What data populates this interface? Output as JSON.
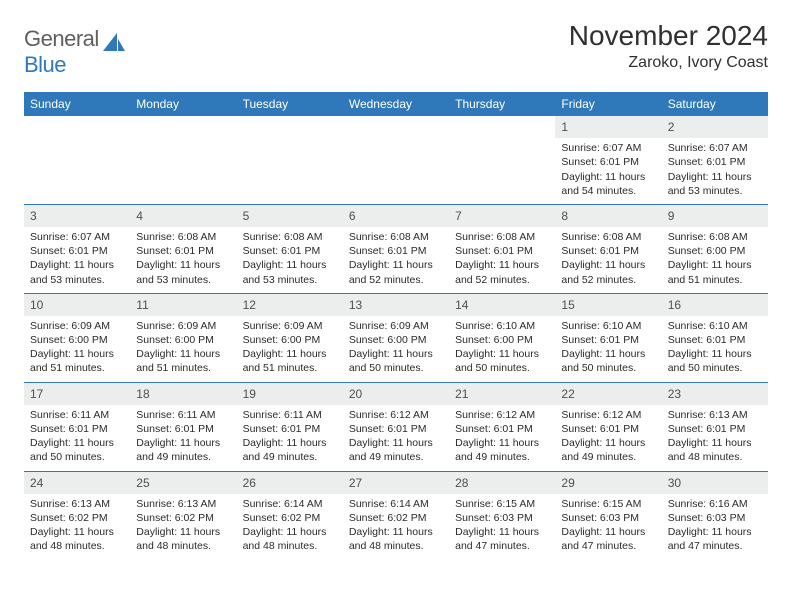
{
  "brand": {
    "word1": "General",
    "word2": "Blue",
    "icon_color": "#2f79bb",
    "text_gray": "#5f5f5f"
  },
  "title": {
    "month_year": "November 2024",
    "location": "Zaroko, Ivory Coast"
  },
  "style": {
    "header_bg": "#2f79bb",
    "header_fg": "#ffffff",
    "daybar_bg": "#eceded",
    "rule_color": "#2f79bb",
    "body_text": "#2b2b2b",
    "title_fontsize": 28,
    "location_fontsize": 16,
    "dayhead_fontsize": 12,
    "cell_fontsize": 10.5
  },
  "day_headers": [
    "Sunday",
    "Monday",
    "Tuesday",
    "Wednesday",
    "Thursday",
    "Friday",
    "Saturday"
  ],
  "weeks": [
    [
      {
        "empty": true
      },
      {
        "empty": true
      },
      {
        "empty": true
      },
      {
        "empty": true
      },
      {
        "empty": true
      },
      {
        "day": "1",
        "sunrise": "Sunrise: 6:07 AM",
        "sunset": "Sunset: 6:01 PM",
        "daylight": "Daylight: 11 hours and 54 minutes."
      },
      {
        "day": "2",
        "sunrise": "Sunrise: 6:07 AM",
        "sunset": "Sunset: 6:01 PM",
        "daylight": "Daylight: 11 hours and 53 minutes."
      }
    ],
    [
      {
        "day": "3",
        "sunrise": "Sunrise: 6:07 AM",
        "sunset": "Sunset: 6:01 PM",
        "daylight": "Daylight: 11 hours and 53 minutes."
      },
      {
        "day": "4",
        "sunrise": "Sunrise: 6:08 AM",
        "sunset": "Sunset: 6:01 PM",
        "daylight": "Daylight: 11 hours and 53 minutes."
      },
      {
        "day": "5",
        "sunrise": "Sunrise: 6:08 AM",
        "sunset": "Sunset: 6:01 PM",
        "daylight": "Daylight: 11 hours and 53 minutes."
      },
      {
        "day": "6",
        "sunrise": "Sunrise: 6:08 AM",
        "sunset": "Sunset: 6:01 PM",
        "daylight": "Daylight: 11 hours and 52 minutes."
      },
      {
        "day": "7",
        "sunrise": "Sunrise: 6:08 AM",
        "sunset": "Sunset: 6:01 PM",
        "daylight": "Daylight: 11 hours and 52 minutes."
      },
      {
        "day": "8",
        "sunrise": "Sunrise: 6:08 AM",
        "sunset": "Sunset: 6:01 PM",
        "daylight": "Daylight: 11 hours and 52 minutes."
      },
      {
        "day": "9",
        "sunrise": "Sunrise: 6:08 AM",
        "sunset": "Sunset: 6:00 PM",
        "daylight": "Daylight: 11 hours and 51 minutes."
      }
    ],
    [
      {
        "day": "10",
        "sunrise": "Sunrise: 6:09 AM",
        "sunset": "Sunset: 6:00 PM",
        "daylight": "Daylight: 11 hours and 51 minutes."
      },
      {
        "day": "11",
        "sunrise": "Sunrise: 6:09 AM",
        "sunset": "Sunset: 6:00 PM",
        "daylight": "Daylight: 11 hours and 51 minutes."
      },
      {
        "day": "12",
        "sunrise": "Sunrise: 6:09 AM",
        "sunset": "Sunset: 6:00 PM",
        "daylight": "Daylight: 11 hours and 51 minutes."
      },
      {
        "day": "13",
        "sunrise": "Sunrise: 6:09 AM",
        "sunset": "Sunset: 6:00 PM",
        "daylight": "Daylight: 11 hours and 50 minutes."
      },
      {
        "day": "14",
        "sunrise": "Sunrise: 6:10 AM",
        "sunset": "Sunset: 6:00 PM",
        "daylight": "Daylight: 11 hours and 50 minutes."
      },
      {
        "day": "15",
        "sunrise": "Sunrise: 6:10 AM",
        "sunset": "Sunset: 6:01 PM",
        "daylight": "Daylight: 11 hours and 50 minutes."
      },
      {
        "day": "16",
        "sunrise": "Sunrise: 6:10 AM",
        "sunset": "Sunset: 6:01 PM",
        "daylight": "Daylight: 11 hours and 50 minutes."
      }
    ],
    [
      {
        "day": "17",
        "sunrise": "Sunrise: 6:11 AM",
        "sunset": "Sunset: 6:01 PM",
        "daylight": "Daylight: 11 hours and 50 minutes."
      },
      {
        "day": "18",
        "sunrise": "Sunrise: 6:11 AM",
        "sunset": "Sunset: 6:01 PM",
        "daylight": "Daylight: 11 hours and 49 minutes."
      },
      {
        "day": "19",
        "sunrise": "Sunrise: 6:11 AM",
        "sunset": "Sunset: 6:01 PM",
        "daylight": "Daylight: 11 hours and 49 minutes."
      },
      {
        "day": "20",
        "sunrise": "Sunrise: 6:12 AM",
        "sunset": "Sunset: 6:01 PM",
        "daylight": "Daylight: 11 hours and 49 minutes."
      },
      {
        "day": "21",
        "sunrise": "Sunrise: 6:12 AM",
        "sunset": "Sunset: 6:01 PM",
        "daylight": "Daylight: 11 hours and 49 minutes."
      },
      {
        "day": "22",
        "sunrise": "Sunrise: 6:12 AM",
        "sunset": "Sunset: 6:01 PM",
        "daylight": "Daylight: 11 hours and 49 minutes."
      },
      {
        "day": "23",
        "sunrise": "Sunrise: 6:13 AM",
        "sunset": "Sunset: 6:01 PM",
        "daylight": "Daylight: 11 hours and 48 minutes."
      }
    ],
    [
      {
        "day": "24",
        "sunrise": "Sunrise: 6:13 AM",
        "sunset": "Sunset: 6:02 PM",
        "daylight": "Daylight: 11 hours and 48 minutes."
      },
      {
        "day": "25",
        "sunrise": "Sunrise: 6:13 AM",
        "sunset": "Sunset: 6:02 PM",
        "daylight": "Daylight: 11 hours and 48 minutes."
      },
      {
        "day": "26",
        "sunrise": "Sunrise: 6:14 AM",
        "sunset": "Sunset: 6:02 PM",
        "daylight": "Daylight: 11 hours and 48 minutes."
      },
      {
        "day": "27",
        "sunrise": "Sunrise: 6:14 AM",
        "sunset": "Sunset: 6:02 PM",
        "daylight": "Daylight: 11 hours and 48 minutes."
      },
      {
        "day": "28",
        "sunrise": "Sunrise: 6:15 AM",
        "sunset": "Sunset: 6:03 PM",
        "daylight": "Daylight: 11 hours and 47 minutes."
      },
      {
        "day": "29",
        "sunrise": "Sunrise: 6:15 AM",
        "sunset": "Sunset: 6:03 PM",
        "daylight": "Daylight: 11 hours and 47 minutes."
      },
      {
        "day": "30",
        "sunrise": "Sunrise: 6:16 AM",
        "sunset": "Sunset: 6:03 PM",
        "daylight": "Daylight: 11 hours and 47 minutes."
      }
    ]
  ]
}
